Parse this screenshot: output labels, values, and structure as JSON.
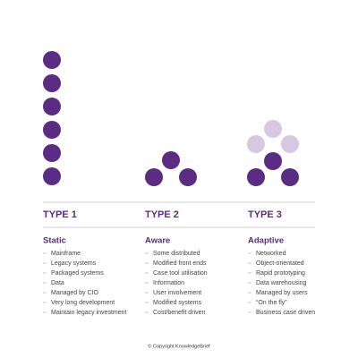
{
  "columns": [
    {
      "title": "TYPE 1",
      "subtitle": "Static",
      "items": [
        "Mainframe",
        "Legacy systems",
        "Packaged systems",
        "Data",
        "Managed by CIO",
        "Very long development",
        "Maintain legacy investment"
      ]
    },
    {
      "title": "TYPE 2",
      "subtitle": "Aware",
      "items": [
        "Some distributed",
        "Modified front ends",
        "Case tool utilisation",
        "Information",
        "User involvement",
        "Modified systems",
        "Cost/benefit driven"
      ]
    },
    {
      "title": "TYPE 3",
      "subtitle": "Adaptive",
      "items": [
        "Networked",
        "Object-orientated",
        "Rapid prototyping",
        "Data warehousing",
        "Managed by users",
        "“On the fly”",
        "Business case driven"
      ]
    }
  ],
  "footer": "© Copyright KnowledgeBrief"
}
